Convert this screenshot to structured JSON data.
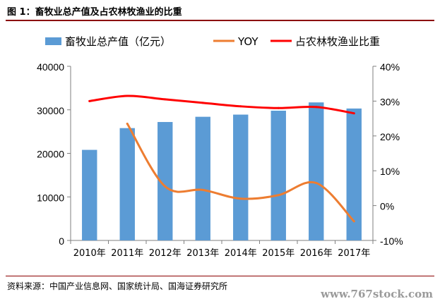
{
  "header": {
    "title": "图 1：畜牧业总产值及占农林牧渔业的比重"
  },
  "footer": {
    "source": "资料来源：中国产业信息网、国家统计局、国海证券研究所",
    "watermark": "www.767stock.com"
  },
  "colors": {
    "bar": "#5b9bd5",
    "yoy": "#ed7d31",
    "share": "#ff0000",
    "title_rule": "#8b0000"
  },
  "chart_data": {
    "type": "bar",
    "categories": [
      "2010年",
      "2011年",
      "2012年",
      "2013年",
      "2014年",
      "2015年",
      "2016年",
      "2017年"
    ],
    "series": [
      {
        "name": "畜牧业总产值（亿元）",
        "type": "bar",
        "axis": "left",
        "values": [
          20800,
          25800,
          27200,
          28400,
          28900,
          29800,
          31700,
          30300
        ]
      },
      {
        "name": "YOY",
        "type": "line",
        "axis": "right",
        "values": [
          null,
          23.5,
          5.5,
          4.5,
          2.0,
          3.0,
          6.5,
          -4.5
        ]
      },
      {
        "name": "占农林牧渔业比重",
        "type": "line",
        "axis": "right",
        "values": [
          30.0,
          31.5,
          30.5,
          29.5,
          28.5,
          28.0,
          28.3,
          26.5
        ]
      }
    ],
    "ylim_left": [
      0,
      40000
    ],
    "yticks_left": [
      "0",
      "10000",
      "20000",
      "30000",
      "40000"
    ],
    "ylim_right": [
      -10,
      40
    ],
    "yticks_right": [
      "-10%",
      "0%",
      "10%",
      "20%",
      "30%",
      "40%"
    ],
    "legend_position": "top",
    "grid": false
  }
}
